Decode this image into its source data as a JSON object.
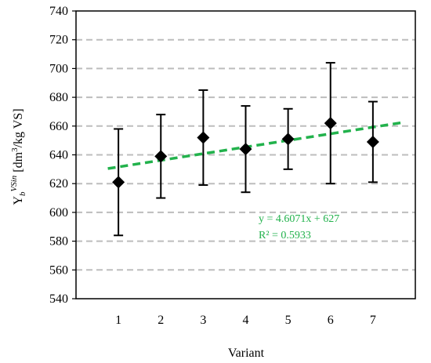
{
  "chart_data": {
    "type": "scatter",
    "title": "",
    "xlabel": "Variant",
    "ylabel": {
      "base": "Y",
      "sub": "b",
      "sup": "VSin",
      "unit_open": " [dm",
      "unit_sup": "3",
      "unit_close": "/kg VS]"
    },
    "ylim": [
      540,
      740
    ],
    "yticks": [
      540,
      560,
      580,
      600,
      620,
      640,
      660,
      680,
      700,
      720,
      740
    ],
    "xlim": [
      0,
      8
    ],
    "x": [
      1,
      2,
      3,
      4,
      5,
      6,
      7
    ],
    "xtick_labels": [
      "1",
      "2",
      "3",
      "4",
      "5",
      "6",
      "7"
    ],
    "series": [
      {
        "values": [
          621,
          639,
          652,
          644,
          651,
          662,
          649
        ],
        "err_low": [
          584,
          610,
          619,
          614,
          630,
          620,
          621
        ],
        "err_high": [
          658,
          668,
          685,
          674,
          672,
          704,
          677
        ],
        "marker": "diamond",
        "color": "#000000"
      }
    ],
    "trendline": {
      "slope": 4.6071,
      "intercept": 627,
      "x_range": [
        0.75,
        7.75
      ],
      "color": "#22b24c",
      "equation": "y = 4.6071x + 627",
      "r2": "R² = 0.5933"
    },
    "grid": true,
    "grid_style": "dashed-gray",
    "legend": "none"
  }
}
